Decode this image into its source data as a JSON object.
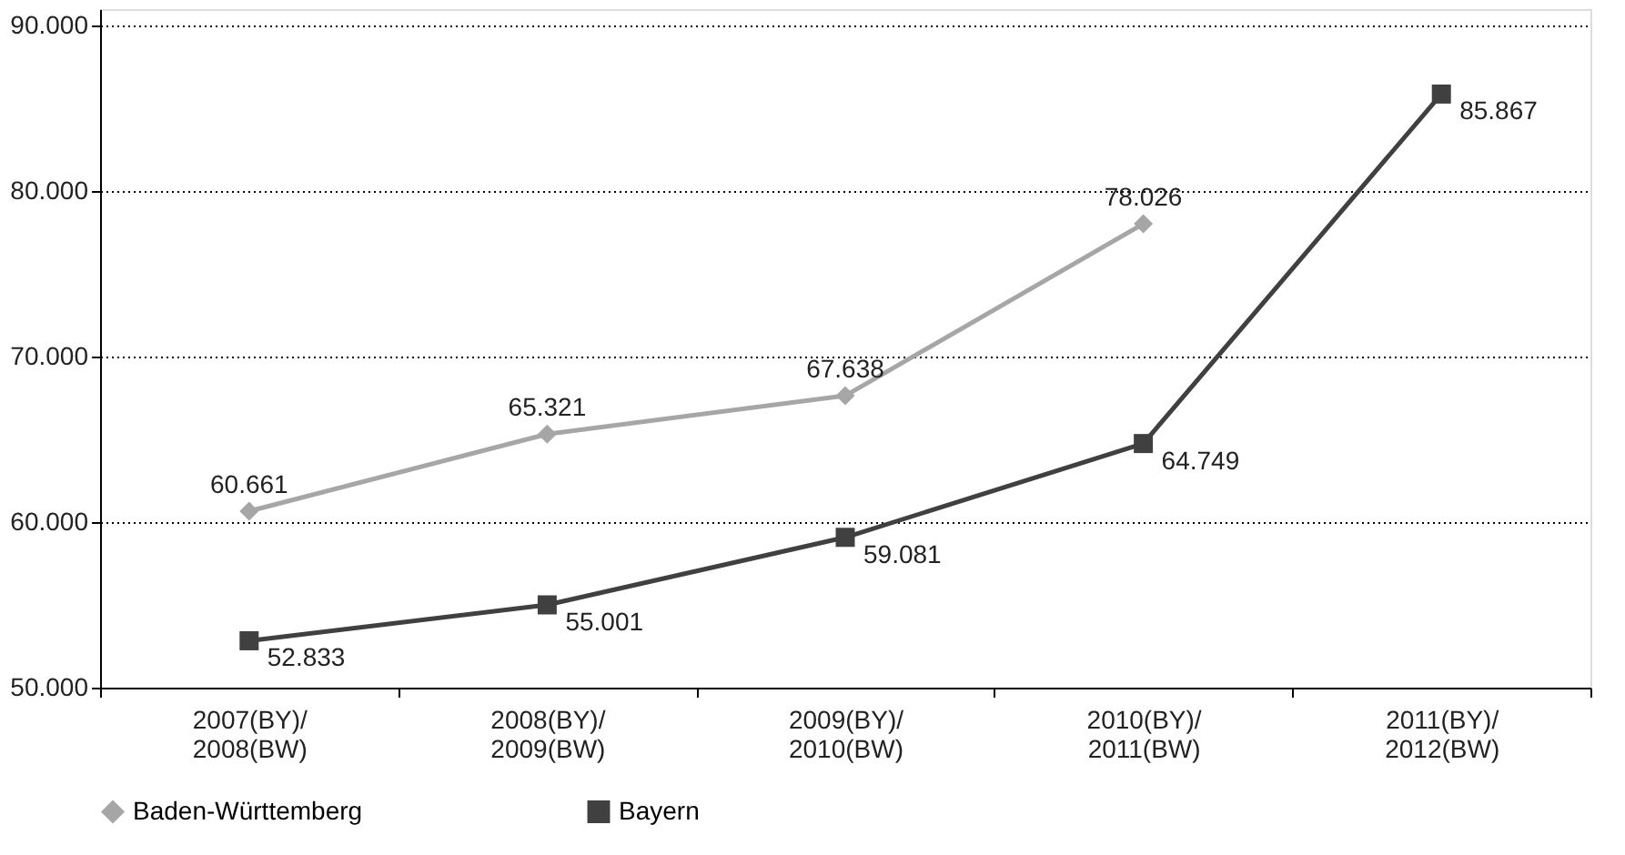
{
  "chart_data": {
    "type": "line",
    "categories": [
      "2007(BY)/ 2008(BW)",
      "2008(BY)/ 2009(BW)",
      "2009(BY)/ 2010(BW)",
      "2010(BY)/ 2011(BW)",
      "2011(BY)/ 2012(BW)"
    ],
    "series": [
      {
        "name": "Baden-Württemberg",
        "color": "#a6a6a6",
        "marker": "diamond",
        "values": [
          60661,
          65321,
          67638,
          78026,
          null
        ],
        "value_labels": [
          "60.661",
          "65.321",
          "67.638",
          "78.026",
          null
        ]
      },
      {
        "name": "Bayern",
        "color": "#404040",
        "marker": "square",
        "values": [
          52833,
          55001,
          59081,
          64749,
          85867
        ],
        "value_labels": [
          "52.833",
          "55.001",
          "59.081",
          "64.749",
          "85.867"
        ]
      }
    ],
    "ylim": [
      50000,
      91000
    ],
    "yticks": [
      {
        "value": 50000,
        "label": "50.000"
      },
      {
        "value": 60000,
        "label": "60.000"
      },
      {
        "value": 70000,
        "label": "70.000"
      },
      {
        "value": 80000,
        "label": "80.000"
      },
      {
        "value": 90000,
        "label": "90.000"
      }
    ],
    "grid": "y",
    "legend": "bottom left",
    "line_style": "solid"
  }
}
